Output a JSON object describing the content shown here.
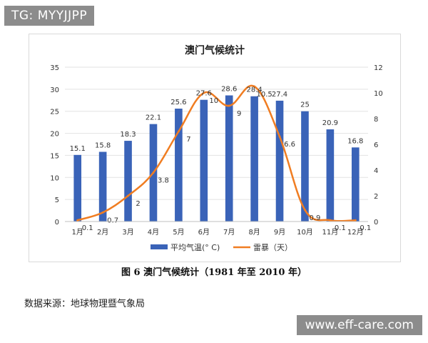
{
  "watermark_top": "TG: MYYJJPP",
  "watermark_bottom": "www.eff-care.com",
  "caption": "图 6 澳门气候统计（1981 年至 2010 年）",
  "source": "数据来源：地球物理暨气象局",
  "colors": {
    "bar": "#3a63b8",
    "line": "#f07d22",
    "grid": "#e2e2e2",
    "axis": "#bfbfbf",
    "text": "#333333"
  },
  "chart_data": {
    "type": "bar",
    "title": "澳门气候统计",
    "categories": [
      "1月",
      "2月",
      "3月",
      "4月",
      "5月",
      "6月",
      "7月",
      "8月",
      "9月",
      "10月",
      "11月",
      "12月"
    ],
    "series": [
      {
        "name": "平均气温(° C)",
        "type": "bar",
        "axis": "left",
        "values": [
          15.1,
          15.8,
          18.3,
          22.1,
          25.6,
          27.6,
          28.6,
          28.4,
          27.4,
          25,
          20.9,
          16.8
        ],
        "labels": [
          "15.1",
          "15.8",
          "18.3",
          "22.1",
          "25.6",
          "27.6",
          "28.6",
          "28.4",
          "27.4",
          "25",
          "20.9",
          "16.8"
        ]
      },
      {
        "name": "雷暴（天）",
        "type": "line",
        "axis": "right",
        "values": [
          0.1,
          0.7,
          2,
          3.8,
          7,
          10,
          9,
          10.5,
          6.6,
          0.9,
          0.1,
          0.1
        ],
        "labels": [
          "0.1",
          "0.7",
          "2",
          "3.8",
          "7",
          "10",
          "9",
          "10.5",
          "6.6",
          "0.9",
          "0.1",
          "0.1"
        ]
      }
    ],
    "y_left": {
      "min": 0,
      "max": 35,
      "ticks": [
        "0",
        "5",
        "10",
        "15",
        "20",
        "25",
        "30",
        "35"
      ]
    },
    "y_right": {
      "min": 0,
      "max": 12,
      "ticks": [
        "0",
        "2",
        "4",
        "6",
        "8",
        "10",
        "12"
      ]
    },
    "grid": true,
    "legend": "bottom"
  }
}
